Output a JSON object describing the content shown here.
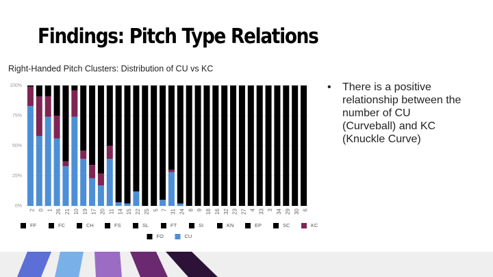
{
  "slide_title": "Findings: Pitch Type Relations",
  "bullet": "There is a positive relationship between the number of CU (Curveball) and KC (Knuckle Curve)",
  "chart_data": {
    "type": "stacked_bar",
    "title": "Right-Handed Pitch Clusters: Distribution of CU vs KC",
    "categories": [
      "2",
      "0",
      "1",
      "26",
      "21",
      "10",
      "19",
      "17",
      "20",
      "11",
      "14",
      "15",
      "22",
      "25",
      "5",
      "7",
      "31",
      "24",
      "8",
      "9",
      "18",
      "16",
      "32",
      "23",
      "27",
      "4",
      "33",
      "3",
      "34",
      "29",
      "30",
      "6"
    ],
    "ylim": [
      0,
      100
    ],
    "yticks": [
      {
        "value": 0,
        "label": "0%"
      },
      {
        "value": 25,
        "label": "25%"
      },
      {
        "value": 50,
        "label": "50%"
      },
      {
        "value": 75,
        "label": "75%"
      },
      {
        "value": 100,
        "label": "100%"
      }
    ],
    "grid": true,
    "series": [
      {
        "name": "FF",
        "color": "#000000",
        "values": [
          1,
          9,
          9,
          25,
          63,
          4,
          54,
          66,
          73,
          50,
          97,
          98,
          88,
          100,
          100,
          95,
          70,
          98,
          100,
          100,
          100,
          100,
          100,
          100,
          100,
          100,
          100,
          100,
          100,
          100,
          100,
          100
        ]
      },
      {
        "name": "FC",
        "color": "#000000",
        "values": [
          0,
          0,
          0,
          0,
          0,
          0,
          0,
          0,
          0,
          0,
          0,
          0,
          0,
          0,
          0,
          0,
          0,
          0,
          0,
          0,
          0,
          0,
          0,
          0,
          0,
          0,
          0,
          0,
          0,
          0,
          0,
          0
        ]
      },
      {
        "name": "CH",
        "color": "#000000",
        "values": [
          0,
          0,
          0,
          0,
          0,
          0,
          0,
          0,
          0,
          0,
          0,
          0,
          0,
          0,
          0,
          0,
          0,
          0,
          0,
          0,
          0,
          0,
          0,
          0,
          0,
          0,
          0,
          0,
          0,
          0,
          0,
          0
        ]
      },
      {
        "name": "FS",
        "color": "#000000",
        "values": [
          0,
          0,
          0,
          0,
          0,
          0,
          0,
          0,
          0,
          0,
          0,
          0,
          0,
          0,
          0,
          0,
          0,
          0,
          0,
          0,
          0,
          0,
          0,
          0,
          0,
          0,
          0,
          0,
          0,
          0,
          0,
          0
        ]
      },
      {
        "name": "SL",
        "color": "#000000",
        "values": [
          0,
          0,
          0,
          0,
          0,
          0,
          0,
          0,
          0,
          0,
          0,
          0,
          0,
          0,
          0,
          0,
          0,
          0,
          0,
          0,
          0,
          0,
          0,
          0,
          0,
          0,
          0,
          0,
          0,
          0,
          0,
          0
        ]
      },
      {
        "name": "FT",
        "color": "#000000",
        "values": [
          0,
          0,
          0,
          0,
          0,
          0,
          0,
          0,
          0,
          0,
          0,
          0,
          0,
          0,
          0,
          0,
          0,
          0,
          0,
          0,
          0,
          0,
          0,
          0,
          0,
          0,
          0,
          0,
          0,
          0,
          0,
          0
        ]
      },
      {
        "name": "SI",
        "color": "#000000",
        "values": [
          0,
          0,
          0,
          0,
          0,
          0,
          0,
          0,
          0,
          0,
          0,
          0,
          0,
          0,
          0,
          0,
          0,
          0,
          0,
          0,
          0,
          0,
          0,
          0,
          0,
          0,
          0,
          0,
          0,
          0,
          0,
          0
        ]
      },
      {
        "name": "KN",
        "color": "#000000",
        "values": [
          0,
          0,
          0,
          0,
          0,
          0,
          0,
          0,
          0,
          0,
          0,
          0,
          0,
          0,
          0,
          0,
          0,
          0,
          0,
          0,
          0,
          0,
          0,
          0,
          0,
          0,
          0,
          0,
          0,
          0,
          0,
          0
        ]
      },
      {
        "name": "EP",
        "color": "#000000",
        "values": [
          0,
          0,
          0,
          0,
          0,
          0,
          0,
          0,
          0,
          0,
          0,
          0,
          0,
          0,
          0,
          0,
          0,
          0,
          0,
          0,
          0,
          0,
          0,
          0,
          0,
          0,
          0,
          0,
          0,
          0,
          0,
          0
        ]
      },
      {
        "name": "SC",
        "color": "#000000",
        "values": [
          0,
          0,
          0,
          0,
          0,
          0,
          0,
          0,
          0,
          0,
          0,
          0,
          0,
          0,
          0,
          0,
          0,
          0,
          0,
          0,
          0,
          0,
          0,
          0,
          0,
          0,
          0,
          0,
          0,
          0,
          0,
          0
        ]
      },
      {
        "name": "KC",
        "color": "#7e2553",
        "values": [
          16,
          33,
          17,
          19,
          4,
          22,
          7,
          11,
          10,
          11,
          0,
          0,
          0,
          0,
          0,
          0,
          2,
          0,
          0,
          0,
          0,
          0,
          0,
          0,
          0,
          0,
          0,
          0,
          0,
          0,
          0,
          0
        ]
      },
      {
        "name": "FO",
        "color": "#000000",
        "values": [
          0,
          0,
          0,
          0,
          0,
          0,
          0,
          0,
          0,
          0,
          0,
          0,
          0,
          0,
          0,
          0,
          0,
          0,
          0,
          0,
          0,
          0,
          0,
          0,
          0,
          0,
          0,
          0,
          0,
          0,
          0,
          0
        ]
      },
      {
        "name": "CU",
        "color": "#4d8fd6",
        "values": [
          83,
          58,
          74,
          56,
          33,
          74,
          39,
          23,
          17,
          39,
          3,
          2,
          12,
          0,
          0,
          5,
          28,
          2,
          0,
          0,
          0,
          0,
          0,
          0,
          0,
          0,
          0,
          0,
          0,
          0,
          0,
          0
        ]
      }
    ]
  }
}
